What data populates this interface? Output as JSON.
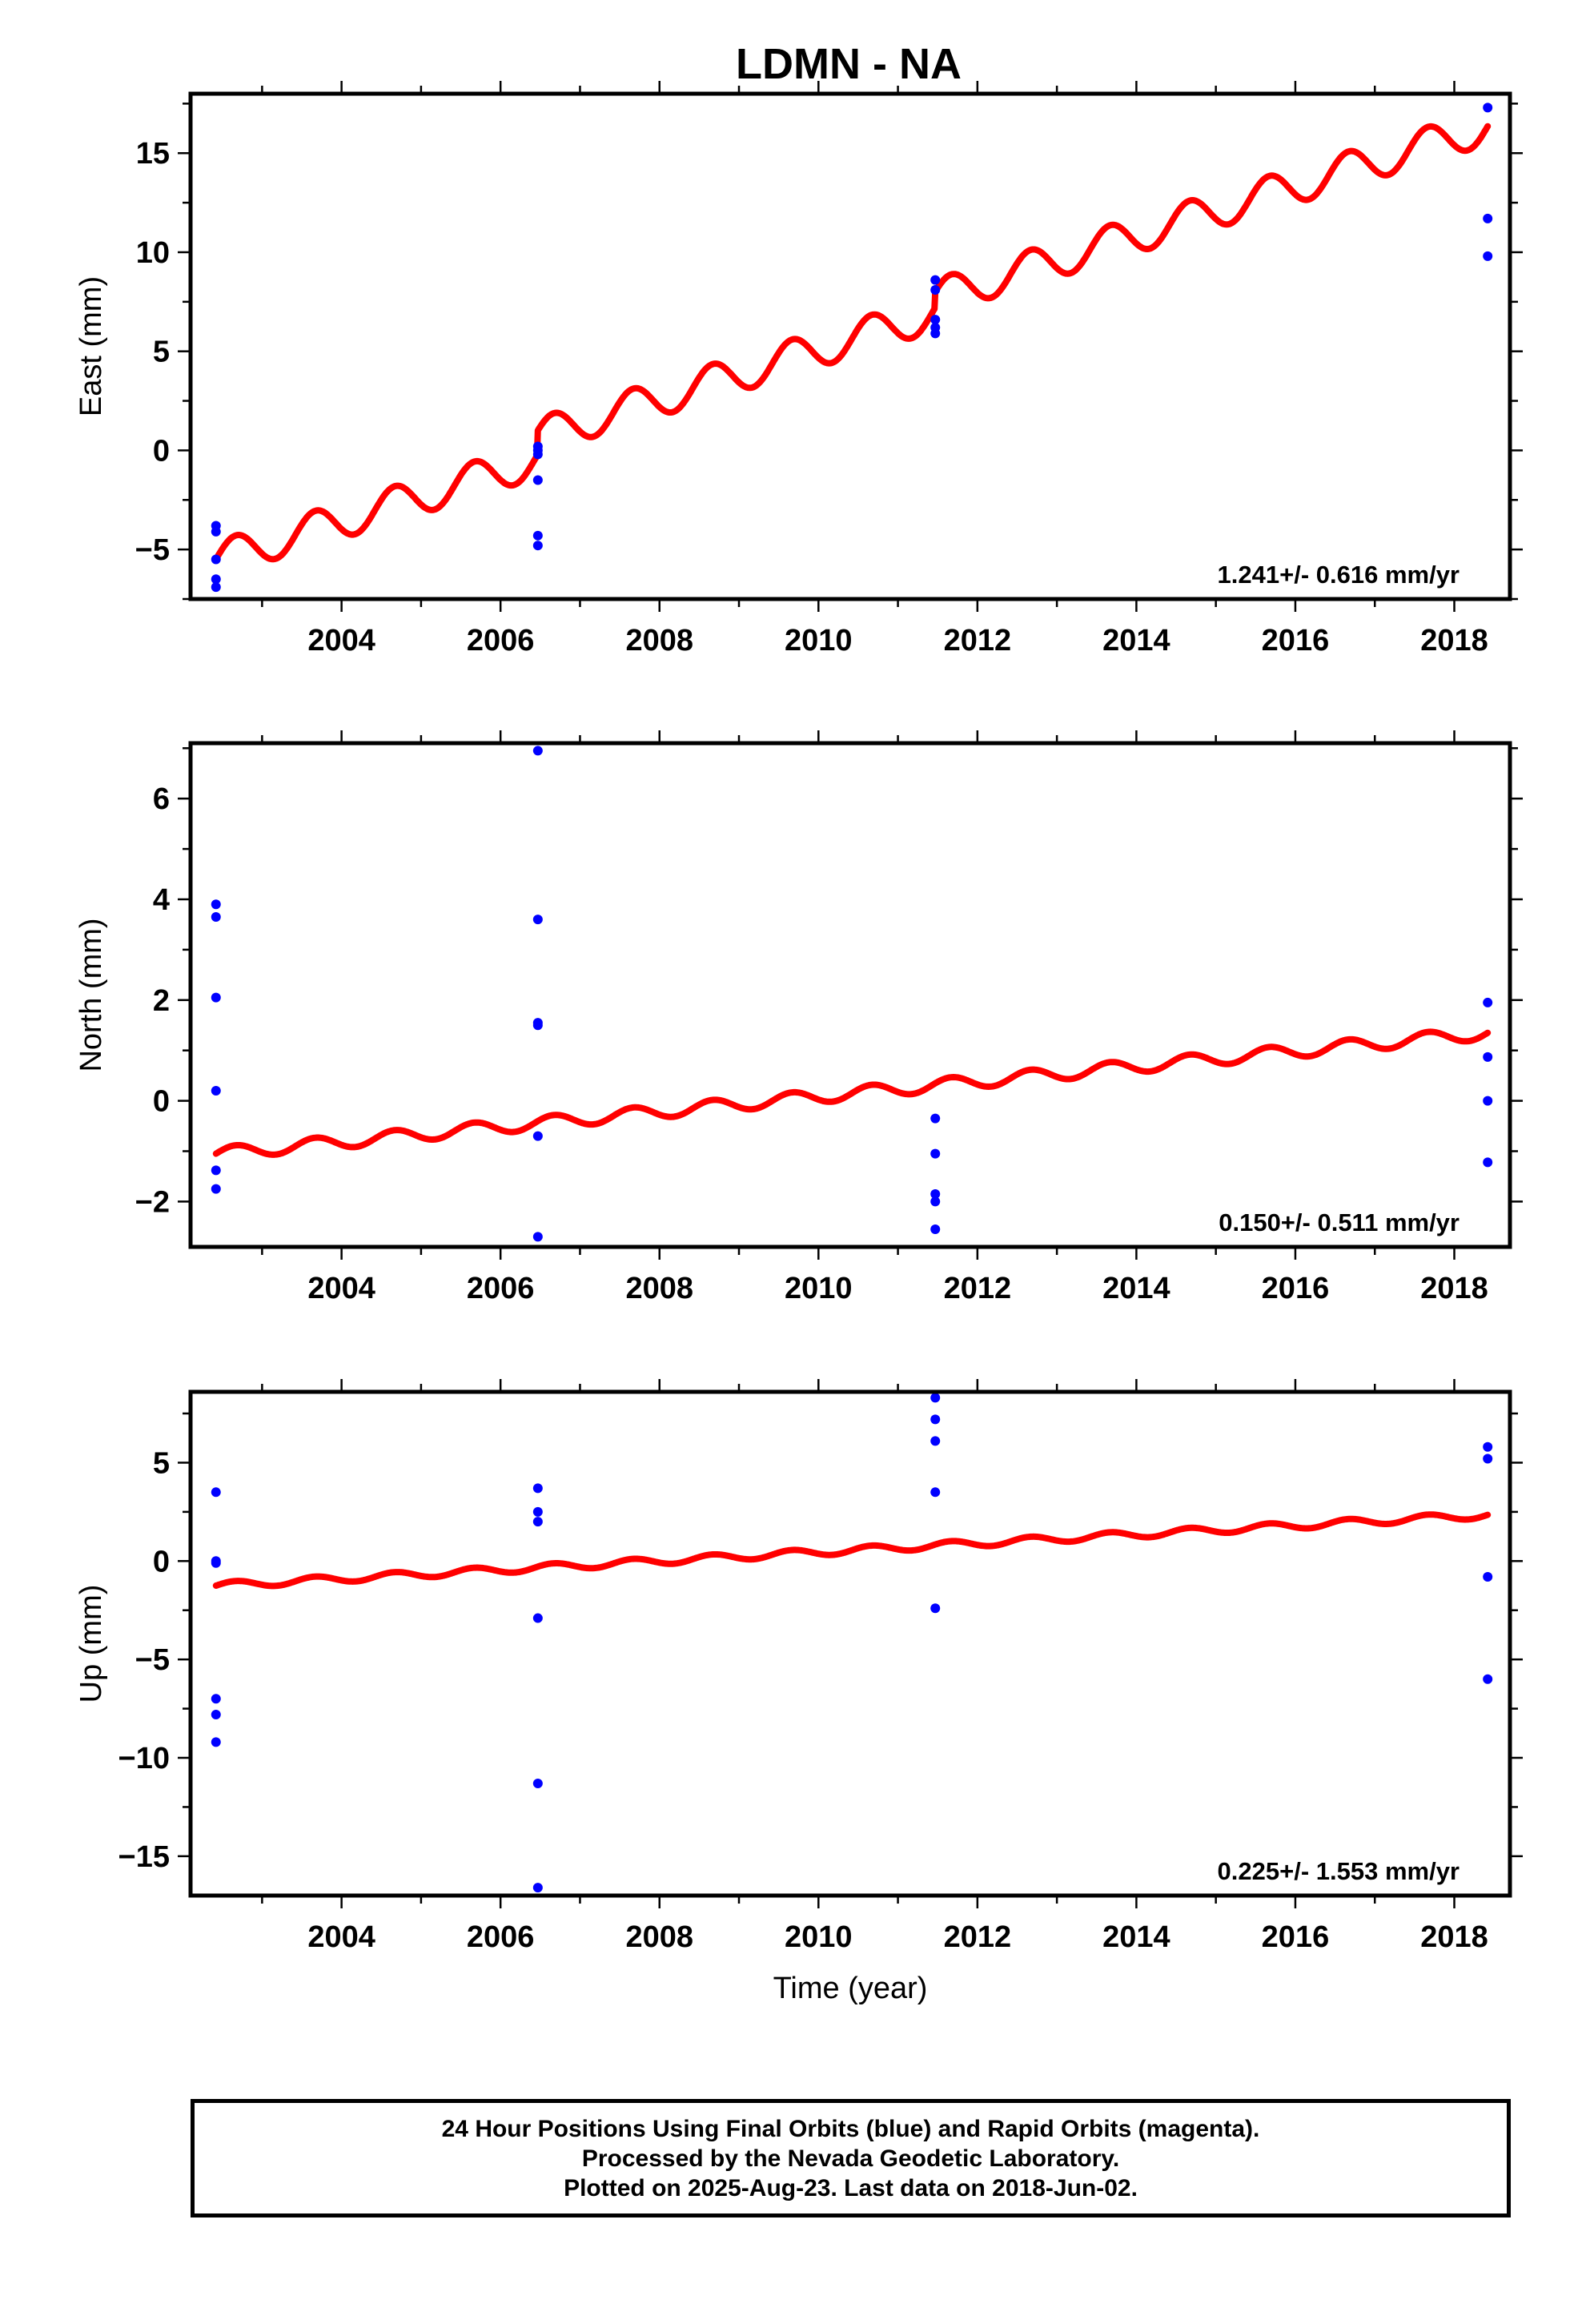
{
  "title": "LDMN - NA",
  "colors": {
    "fit": "#ff0000",
    "final_orbits": "#0000ff",
    "frame": "#000000"
  },
  "chart_data": [
    {
      "type": "scatter",
      "panel": "east",
      "ylabel": "East (mm)",
      "xlabel": "",
      "xlim": [
        2002.1,
        2018.7
      ],
      "ylim": [
        -7.5,
        18
      ],
      "x_ticks": [
        2004,
        2006,
        2008,
        2010,
        2012,
        2014,
        2016,
        2018
      ],
      "y_ticks": [
        -5,
        0,
        5,
        10,
        15
      ],
      "y_tick_labels": [
        "−5",
        "0",
        "5",
        "10",
        "15"
      ],
      "rate_label": "1.241+/- 0.616 mm/yr",
      "points": {
        "name": "Final Orbits (blue)",
        "x": [
          2002.42,
          2002.42,
          2002.42,
          2002.42,
          2002.42,
          2006.47,
          2006.47,
          2006.47,
          2006.47,
          2006.47,
          2006.47,
          2011.47,
          2011.47,
          2011.47,
          2011.47,
          2011.47,
          2018.42,
          2018.42,
          2018.42
        ],
        "y": [
          -3.8,
          -4.1,
          -5.5,
          -6.5,
          -6.9,
          0.2,
          0.0,
          -0.2,
          -1.5,
          -4.3,
          -4.8,
          8.6,
          8.1,
          6.6,
          6.2,
          5.9,
          17.3,
          11.7,
          9.8
        ]
      },
      "fit": {
        "name": "Model fit",
        "x_start": 2002.42,
        "x_end": 2018.42,
        "rate": 1.241,
        "value_at_start": -5.5,
        "annual_amplitude": 0.9,
        "annual_phase": 0.0,
        "offsets": [
          {
            "x": 2006.47,
            "value": 1.2
          },
          {
            "x": 2011.47,
            "value": 0.8
          }
        ]
      }
    },
    {
      "type": "scatter",
      "panel": "north",
      "ylabel": "North (mm)",
      "xlabel": "",
      "xlim": [
        2002.1,
        2018.7
      ],
      "ylim": [
        -2.9,
        7.1
      ],
      "x_ticks": [
        2004,
        2006,
        2008,
        2010,
        2012,
        2014,
        2016,
        2018
      ],
      "y_ticks": [
        -2,
        0,
        2,
        4,
        6
      ],
      "y_tick_labels": [
        "−2",
        "0",
        "2",
        "4",
        "6"
      ],
      "rate_label": "0.150+/- 0.511 mm/yr",
      "points": {
        "name": "Final Orbits (blue)",
        "x": [
          2002.42,
          2002.42,
          2002.42,
          2002.42,
          2002.42,
          2002.42,
          2006.47,
          2006.47,
          2006.47,
          2006.47,
          2006.47,
          2006.47,
          2011.47,
          2011.47,
          2011.47,
          2011.47,
          2011.47,
          2018.42,
          2018.42,
          2018.42,
          2018.42
        ],
        "y": [
          3.9,
          3.65,
          2.05,
          0.2,
          -1.38,
          -1.75,
          6.95,
          3.6,
          1.55,
          1.5,
          -0.7,
          -2.7,
          -0.35,
          -1.05,
          -1.85,
          -2.0,
          -2.55,
          1.95,
          0.87,
          0.0,
          -1.22
        ]
      },
      "fit": {
        "name": "Model fit",
        "x_start": 2002.42,
        "x_end": 2018.42,
        "rate": 0.15,
        "value_at_start": -1.05,
        "annual_amplitude": 0.13,
        "annual_phase": 0.0,
        "offsets": []
      }
    },
    {
      "type": "scatter",
      "panel": "up",
      "ylabel": "Up (mm)",
      "xlabel": "Time (year)",
      "xlim": [
        2002.1,
        2018.7
      ],
      "ylim": [
        -17,
        8.6
      ],
      "x_ticks": [
        2004,
        2006,
        2008,
        2010,
        2012,
        2014,
        2016,
        2018
      ],
      "y_ticks": [
        -15,
        -10,
        -5,
        0,
        5
      ],
      "y_tick_labels": [
        "−15",
        "−10",
        "−5",
        "0",
        "5"
      ],
      "rate_label": "0.225+/- 1.553 mm/yr",
      "points": {
        "name": "Final Orbits (blue)",
        "x": [
          2002.42,
          2002.42,
          2002.42,
          2002.42,
          2002.42,
          2002.42,
          2006.47,
          2006.47,
          2006.47,
          2006.47,
          2006.47,
          2006.47,
          2011.47,
          2011.47,
          2011.47,
          2011.47,
          2011.47,
          2018.42,
          2018.42,
          2018.42,
          2018.42
        ],
        "y": [
          3.5,
          0.0,
          -0.1,
          -7.0,
          -7.8,
          -9.2,
          3.7,
          2.5,
          2.0,
          -2.9,
          -11.3,
          -16.6,
          8.3,
          7.2,
          6.1,
          3.5,
          -2.4,
          5.8,
          5.2,
          -0.8,
          -6.0
        ]
      },
      "fit": {
        "name": "Model fit",
        "x_start": 2002.42,
        "x_end": 2018.42,
        "rate": 0.225,
        "value_at_start": -1.25,
        "annual_amplitude": 0.18,
        "annual_phase": 0.0,
        "offsets": []
      }
    }
  ],
  "caption": {
    "line1": "24 Hour Positions Using Final Orbits (blue) and Rapid Orbits (magenta).",
    "line2": "Processed by the Nevada Geodetic Laboratory.",
    "line3": "Plotted on 2025-Aug-23. Last data on 2018-Jun-02."
  }
}
